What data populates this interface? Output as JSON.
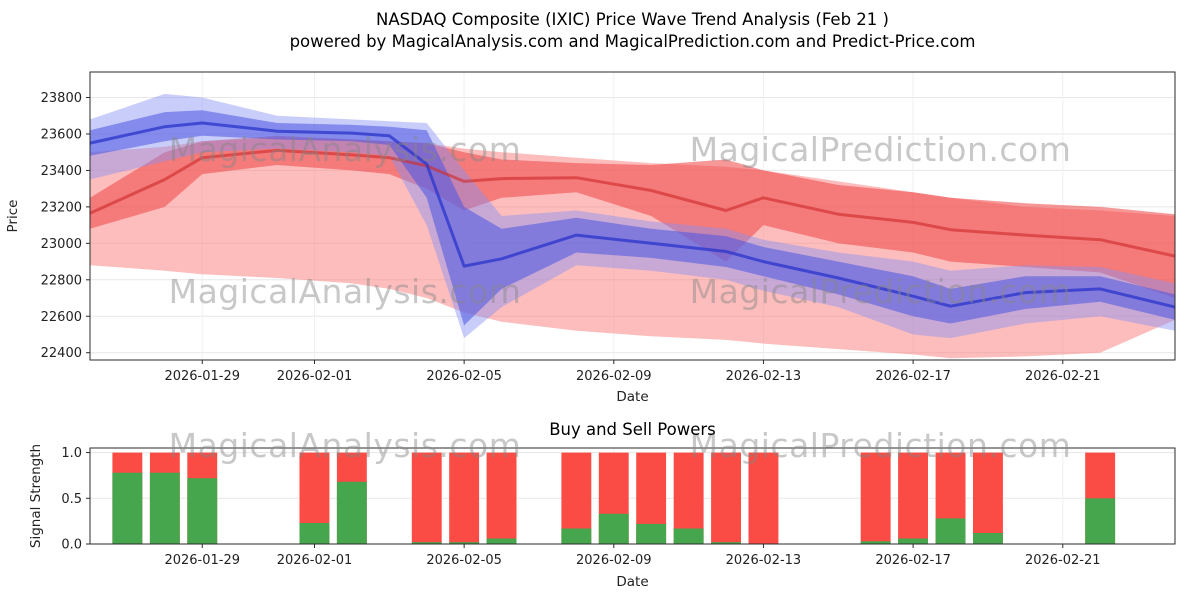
{
  "figure": {
    "title_line1": "NASDAQ Composite (IXIC) Price Wave Trend Analysis (Feb 21 )",
    "title_line2": "powered by MagicalAnalysis.com and MagicalPrediction.com and Predict-Price.com",
    "watermark_left": "MagicalAnalysis.com",
    "watermark_right": "MagicalPrediction.com"
  },
  "chart_data": [
    {
      "type": "area",
      "title": "",
      "xlabel": "Date",
      "ylabel": "Price",
      "x_start": "2026-01-26",
      "x_end": "2026-02-24",
      "x_ticks": [
        "2026-01-29",
        "2026-02-01",
        "2026-02-05",
        "2026-02-09",
        "2026-02-13",
        "2026-02-17",
        "2026-02-21"
      ],
      "ylim": [
        22360,
        23940
      ],
      "y_ticks": [
        22400,
        22600,
        22800,
        23000,
        23200,
        23400,
        23600,
        23800
      ],
      "grid": true,
      "band_x_days": [
        0,
        2,
        3,
        5,
        7,
        8,
        9,
        10,
        11,
        13,
        15,
        17,
        18,
        20,
        22,
        23,
        25,
        27,
        29
      ],
      "bands": [
        {
          "name": "sell-wave-outer",
          "color": "#fb7b7b",
          "opacity": 0.5,
          "upper": [
            23500,
            23530,
            23560,
            23580,
            23570,
            23560,
            23550,
            23520,
            23500,
            23470,
            23440,
            23420,
            23400,
            23340,
            23280,
            23250,
            23200,
            23180,
            23150
          ],
          "lower": [
            22880,
            22850,
            22830,
            22810,
            22780,
            22750,
            22700,
            22620,
            22570,
            22520,
            22490,
            22470,
            22450,
            22420,
            22390,
            22370,
            22380,
            22400,
            22580
          ]
        },
        {
          "name": "sell-wave-inner",
          "color": "#ef4444",
          "opacity": 0.55,
          "upper": [
            23250,
            23500,
            23560,
            23590,
            23570,
            23560,
            23550,
            23500,
            23460,
            23440,
            23430,
            23460,
            23400,
            23320,
            23280,
            23250,
            23220,
            23200,
            23160
          ],
          "lower": [
            23080,
            23200,
            23380,
            23430,
            23400,
            23380,
            23300,
            23180,
            23250,
            23280,
            23150,
            22900,
            23100,
            23000,
            22950,
            22900,
            22870,
            22840,
            22700
          ]
        },
        {
          "name": "buy-wave-outer",
          "color": "#8890f5",
          "opacity": 0.45,
          "upper": [
            23680,
            23820,
            23800,
            23700,
            23680,
            23670,
            23660,
            23400,
            23150,
            23180,
            23120,
            23080,
            23020,
            22950,
            22900,
            22850,
            22880,
            22870,
            22780
          ],
          "lower": [
            23350,
            23450,
            23500,
            23520,
            23500,
            23480,
            23100,
            22480,
            22650,
            22880,
            22850,
            22800,
            22740,
            22650,
            22500,
            22480,
            22560,
            22600,
            22520
          ]
        },
        {
          "name": "buy-wave-inner",
          "color": "#4a55e0",
          "opacity": 0.55,
          "upper": [
            23620,
            23720,
            23730,
            23660,
            23650,
            23640,
            23620,
            23200,
            23080,
            23140,
            23080,
            23040,
            22980,
            22900,
            22820,
            22750,
            22820,
            22820,
            22720
          ],
          "lower": [
            23480,
            23560,
            23590,
            23570,
            23560,
            23540,
            23250,
            22550,
            22750,
            22950,
            22920,
            22870,
            22820,
            22720,
            22600,
            22560,
            22640,
            22680,
            22580
          ]
        }
      ],
      "lines": [
        {
          "name": "sell-median-line",
          "color": "#d03030",
          "opacity": 0.65,
          "width": 3,
          "values": [
            23165,
            23350,
            23470,
            23510,
            23485,
            23470,
            23425,
            23340,
            23355,
            23360,
            23290,
            23180,
            23250,
            23160,
            23115,
            23075,
            23045,
            23020,
            22930
          ]
        },
        {
          "name": "buy-median-line",
          "color": "#3038cc",
          "opacity": 0.8,
          "width": 3,
          "values": [
            23550,
            23640,
            23660,
            23615,
            23605,
            23590,
            23435,
            22875,
            22915,
            23045,
            23000,
            22955,
            22900,
            22810,
            22710,
            22655,
            22730,
            22750,
            22650
          ]
        }
      ]
    },
    {
      "type": "bar",
      "title": "Buy and Sell Powers",
      "xlabel": "Date",
      "ylabel": "Signal Strength",
      "x_start": "2026-01-26",
      "x_end": "2026-02-24",
      "x_ticks": [
        "2026-01-29",
        "2026-02-01",
        "2026-02-05",
        "2026-02-09",
        "2026-02-13",
        "2026-02-17",
        "2026-02-21"
      ],
      "ylim": [
        0,
        1.05
      ],
      "y_ticks": [
        0.0,
        0.5,
        1.0
      ],
      "bar_width_days": 0.8,
      "colors": {
        "sell": "#fa4b45",
        "buy": "#46a64e"
      },
      "bars": [
        {
          "date": "2026-01-27",
          "sell": 1.0,
          "buy": 0.78
        },
        {
          "date": "2026-01-28",
          "sell": 1.0,
          "buy": 0.78
        },
        {
          "date": "2026-01-29",
          "sell": 1.0,
          "buy": 0.72
        },
        {
          "date": "2026-02-01",
          "sell": 1.0,
          "buy": 0.23
        },
        {
          "date": "2026-02-02",
          "sell": 1.0,
          "buy": 0.68
        },
        {
          "date": "2026-02-04",
          "sell": 1.0,
          "buy": 0.02
        },
        {
          "date": "2026-02-05",
          "sell": 1.0,
          "buy": 0.02
        },
        {
          "date": "2026-02-06",
          "sell": 1.0,
          "buy": 0.06
        },
        {
          "date": "2026-02-08",
          "sell": 1.0,
          "buy": 0.17
        },
        {
          "date": "2026-02-09",
          "sell": 1.0,
          "buy": 0.33
        },
        {
          "date": "2026-02-10",
          "sell": 1.0,
          "buy": 0.22
        },
        {
          "date": "2026-02-11",
          "sell": 1.0,
          "buy": 0.17
        },
        {
          "date": "2026-02-12",
          "sell": 1.0,
          "buy": 0.02
        },
        {
          "date": "2026-02-13",
          "sell": 1.0,
          "buy": 0.0
        },
        {
          "date": "2026-02-16",
          "sell": 1.0,
          "buy": 0.03
        },
        {
          "date": "2026-02-17",
          "sell": 1.0,
          "buy": 0.06
        },
        {
          "date": "2026-02-18",
          "sell": 1.0,
          "buy": 0.28
        },
        {
          "date": "2026-02-19",
          "sell": 1.0,
          "buy": 0.12
        },
        {
          "date": "2026-02-22",
          "sell": 1.0,
          "buy": 0.5
        }
      ]
    }
  ]
}
